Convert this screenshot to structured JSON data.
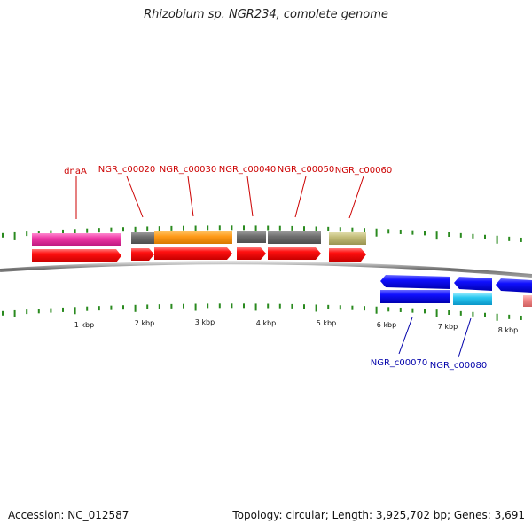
{
  "title": "Rhizobium sp. NGR234, complete genome",
  "footer": {
    "accession": "Accession: NC_012587",
    "summary": "Topology: circular; Length: 3,925,702 bp; Genes: 3,691"
  },
  "colors": {
    "backbone": "#777777",
    "tick": "#2a8a1f",
    "forward_gene": "#ff0000",
    "reverse_gene": "#0000ee",
    "forward_label": "#cc0000",
    "reverse_label": "#0000aa"
  },
  "scale_labels": [
    "1 kbp",
    "2 kbp",
    "3 kbp",
    "4 kbp",
    "5 kbp",
    "6 kbp",
    "7 kbp",
    "8 kbp"
  ],
  "forward_labels": [
    "dnaA",
    "NGR_c00020",
    "NGR_c00030",
    "NGR_c00040",
    "NGR_c00050",
    "NGR_c00060"
  ],
  "reverse_labels": [
    "NGR_c00070",
    "NGR_c00080"
  ]
}
